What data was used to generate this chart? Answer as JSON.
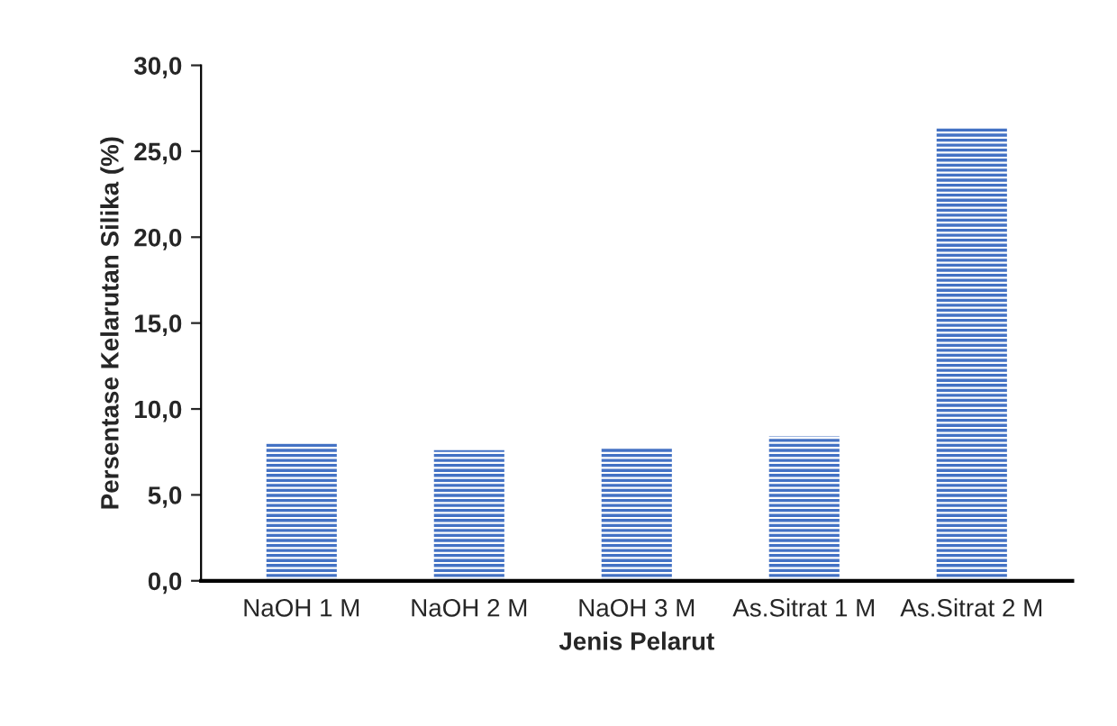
{
  "chart_data": {
    "type": "bar",
    "xlabel": "Jenis Pelarut",
    "ylabel": "Persentase Kelarutan Silika (%)",
    "categories": [
      "NaOH 1 M",
      "NaOH 2 M",
      "NaOH 3 M",
      "As.Sitrat 1 M",
      "As.Sitrat 2 M"
    ],
    "values": [
      8.0,
      7.6,
      7.7,
      8.4,
      26.4
    ],
    "color": "#4472c4",
    "ylim": [
      0,
      30
    ],
    "yticks": [
      {
        "value": 0,
        "label": "0,0"
      },
      {
        "value": 5,
        "label": "5,0"
      },
      {
        "value": 10,
        "label": "10,0"
      },
      {
        "value": 15,
        "label": "15,0"
      },
      {
        "value": 20,
        "label": "20,0"
      },
      {
        "value": 25,
        "label": "25,0"
      },
      {
        "value": 30,
        "label": "30,0"
      }
    ],
    "grid": false
  }
}
